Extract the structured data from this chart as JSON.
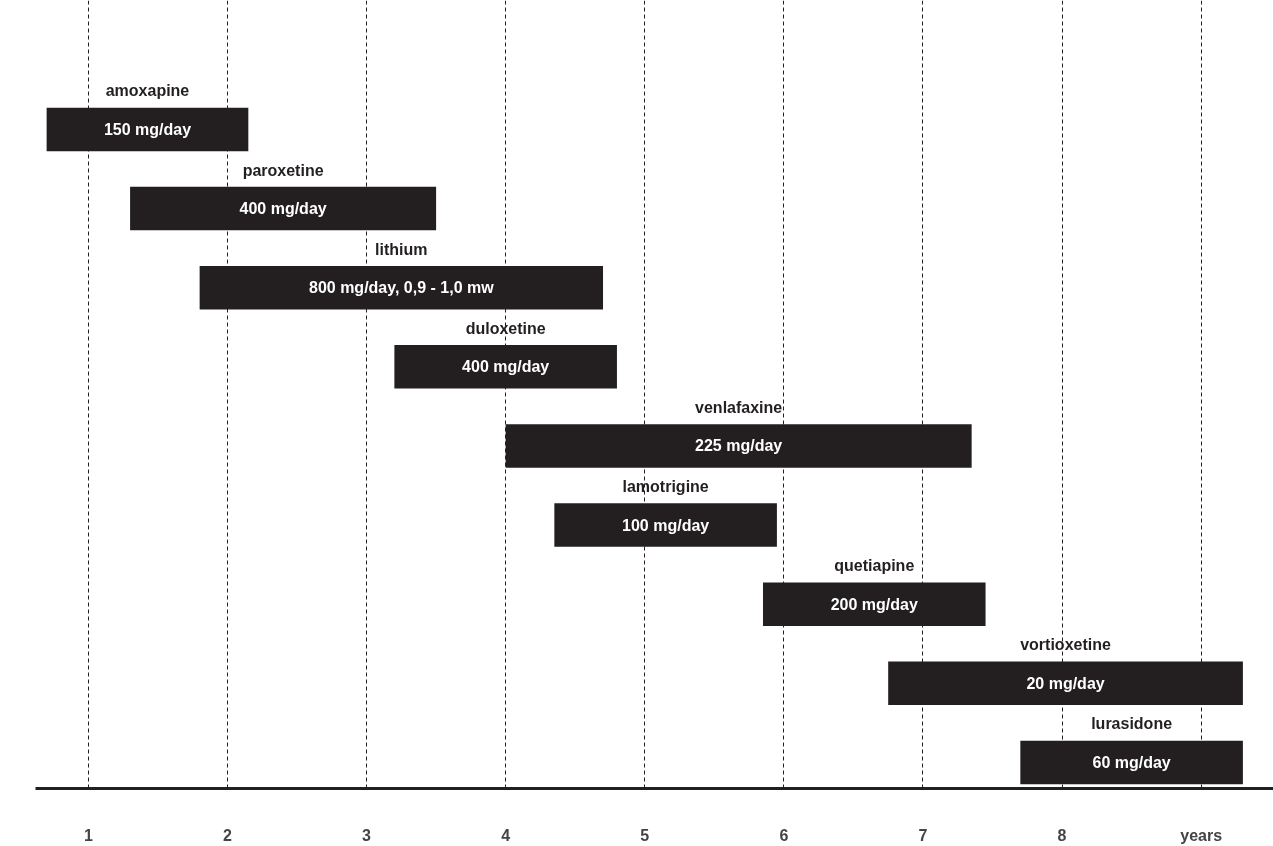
{
  "chart_data": {
    "type": "bar",
    "orientation": "horizontal",
    "categories": [
      "amoxapine",
      "paroxetine",
      "lithium",
      "duloxetine",
      "venlafaxine",
      "lamotrigine",
      "quetiapine",
      "vortioxetine",
      "lurasidone"
    ],
    "base": [
      0.7,
      1.3,
      1.8,
      3.2,
      4.0,
      4.35,
      5.85,
      6.75,
      7.7
    ],
    "values": [
      1.45,
      2.2,
      2.9,
      1.6,
      3.35,
      1.6,
      1.6,
      2.55,
      1.6
    ],
    "color": "#231f20",
    "xlim": [
      0.62,
      9.52
    ],
    "xticks": [
      1,
      2,
      3,
      4,
      5,
      6,
      7,
      8,
      {
        "value": 9,
        "label": "years"
      }
    ],
    "grid": "x",
    "tick_labels": "x",
    "annotations": [
      "150 mg/day",
      "400 mg/day",
      "800 mg/day, 0,9 - 1,0 mw",
      "400 mg/day",
      "225 mg/day",
      "100 mg/day",
      "200 mg/day",
      "20 mg/day",
      "60 mg/day"
    ]
  }
}
